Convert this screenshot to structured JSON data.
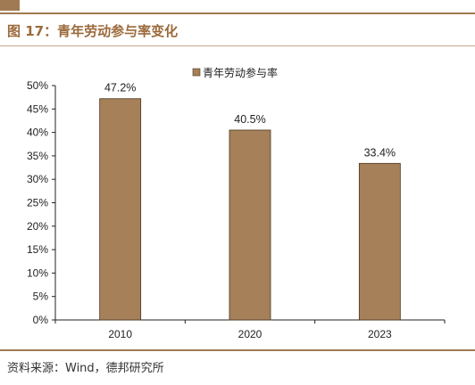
{
  "figure": {
    "title": "图 17：青年劳动参与率变化",
    "source": "资料来源：Wind，德邦研究所"
  },
  "colors": {
    "accent": "#a07a52",
    "bar": "#a68059",
    "bar_border": "#4a3620"
  },
  "chart_data": {
    "type": "bar",
    "categories": [
      "2010",
      "2020",
      "2023"
    ],
    "series": [
      {
        "name": "青年劳动参与率",
        "values": [
          47.2,
          40.5,
          33.4
        ],
        "labels": [
          "47.2%",
          "40.5%",
          "33.4%"
        ]
      }
    ],
    "ylim": [
      0,
      50
    ],
    "yticks": [
      0,
      5,
      10,
      15,
      20,
      25,
      30,
      35,
      40,
      45,
      50
    ],
    "ytick_labels": [
      "0%",
      "5%",
      "10%",
      "15%",
      "20%",
      "25%",
      "30%",
      "35%",
      "40%",
      "45%",
      "50%"
    ],
    "legend_position": "top-center",
    "grid": false
  }
}
